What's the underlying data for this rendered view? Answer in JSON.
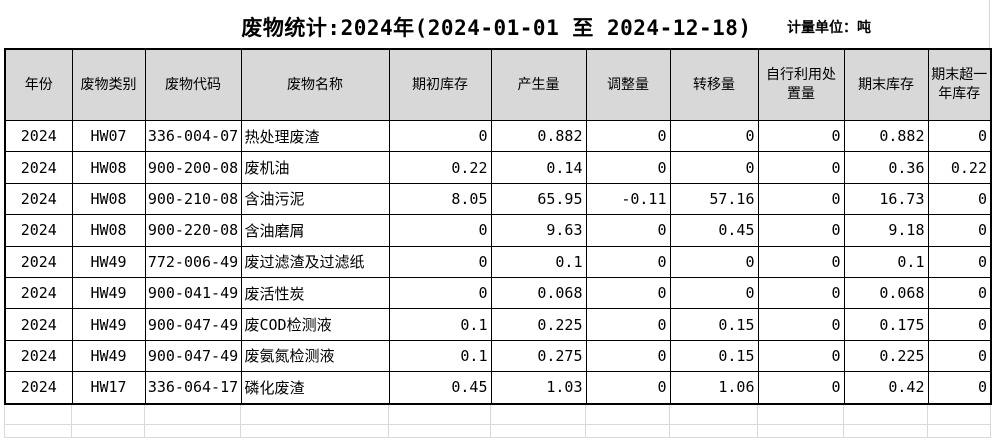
{
  "title": "废物统计:2024年(2024-01-01 至 2024-12-18)",
  "unit_label": "计量单位：吨",
  "colors": {
    "header_bg": "#d8d8d8",
    "table_border": "#000000",
    "faint_grid": "#d9d9d9",
    "background": "#ffffff",
    "text": "#000000"
  },
  "table": {
    "columns": [
      {
        "key": "year",
        "label": "年份"
      },
      {
        "key": "category",
        "label": "废物类别"
      },
      {
        "key": "code",
        "label": "废物代码"
      },
      {
        "key": "name",
        "label": "废物名称"
      },
      {
        "key": "opening_stock",
        "label": "期初库存"
      },
      {
        "key": "produced",
        "label": "产生量"
      },
      {
        "key": "adjusted",
        "label": "调整量"
      },
      {
        "key": "transferred",
        "label": "转移量"
      },
      {
        "key": "self_disposal",
        "label": "自行利用处置量"
      },
      {
        "key": "ending_stock",
        "label": "期末库存"
      },
      {
        "key": "over_year_stock",
        "label": "期末超一年库存"
      }
    ],
    "rows": [
      [
        "2024",
        "HW07",
        "336-004-07",
        "热处理废渣",
        "0",
        "0.882",
        "0",
        "0",
        "0",
        "0.882",
        "0"
      ],
      [
        "2024",
        "HW08",
        "900-200-08",
        "废机油",
        "0.22",
        "0.14",
        "0",
        "0",
        "0",
        "0.36",
        "0.22"
      ],
      [
        "2024",
        "HW08",
        "900-210-08",
        "含油污泥",
        "8.05",
        "65.95",
        "-0.11",
        "57.16",
        "0",
        "16.73",
        "0"
      ],
      [
        "2024",
        "HW08",
        "900-220-08",
        "含油磨屑",
        "0",
        "9.63",
        "0",
        "0.45",
        "0",
        "9.18",
        "0"
      ],
      [
        "2024",
        "HW49",
        "772-006-49",
        "废过滤渣及过滤纸",
        "0",
        "0.1",
        "0",
        "0",
        "0",
        "0.1",
        "0"
      ],
      [
        "2024",
        "HW49",
        "900-041-49",
        "废活性炭",
        "0",
        "0.068",
        "0",
        "0",
        "0",
        "0.068",
        "0"
      ],
      [
        "2024",
        "HW49",
        "900-047-49",
        "废COD检测液",
        "0.1",
        "0.225",
        "0",
        "0.15",
        "0",
        "0.175",
        "0"
      ],
      [
        "2024",
        "HW49",
        "900-047-49",
        "废氨氮检测液",
        "0.1",
        "0.275",
        "0",
        "0.15",
        "0",
        "0.225",
        "0"
      ],
      [
        "2024",
        "HW17",
        "336-064-17",
        "磷化废渣",
        "0.45",
        "1.03",
        "0",
        "1.06",
        "0",
        "0.42",
        "0"
      ]
    ]
  }
}
